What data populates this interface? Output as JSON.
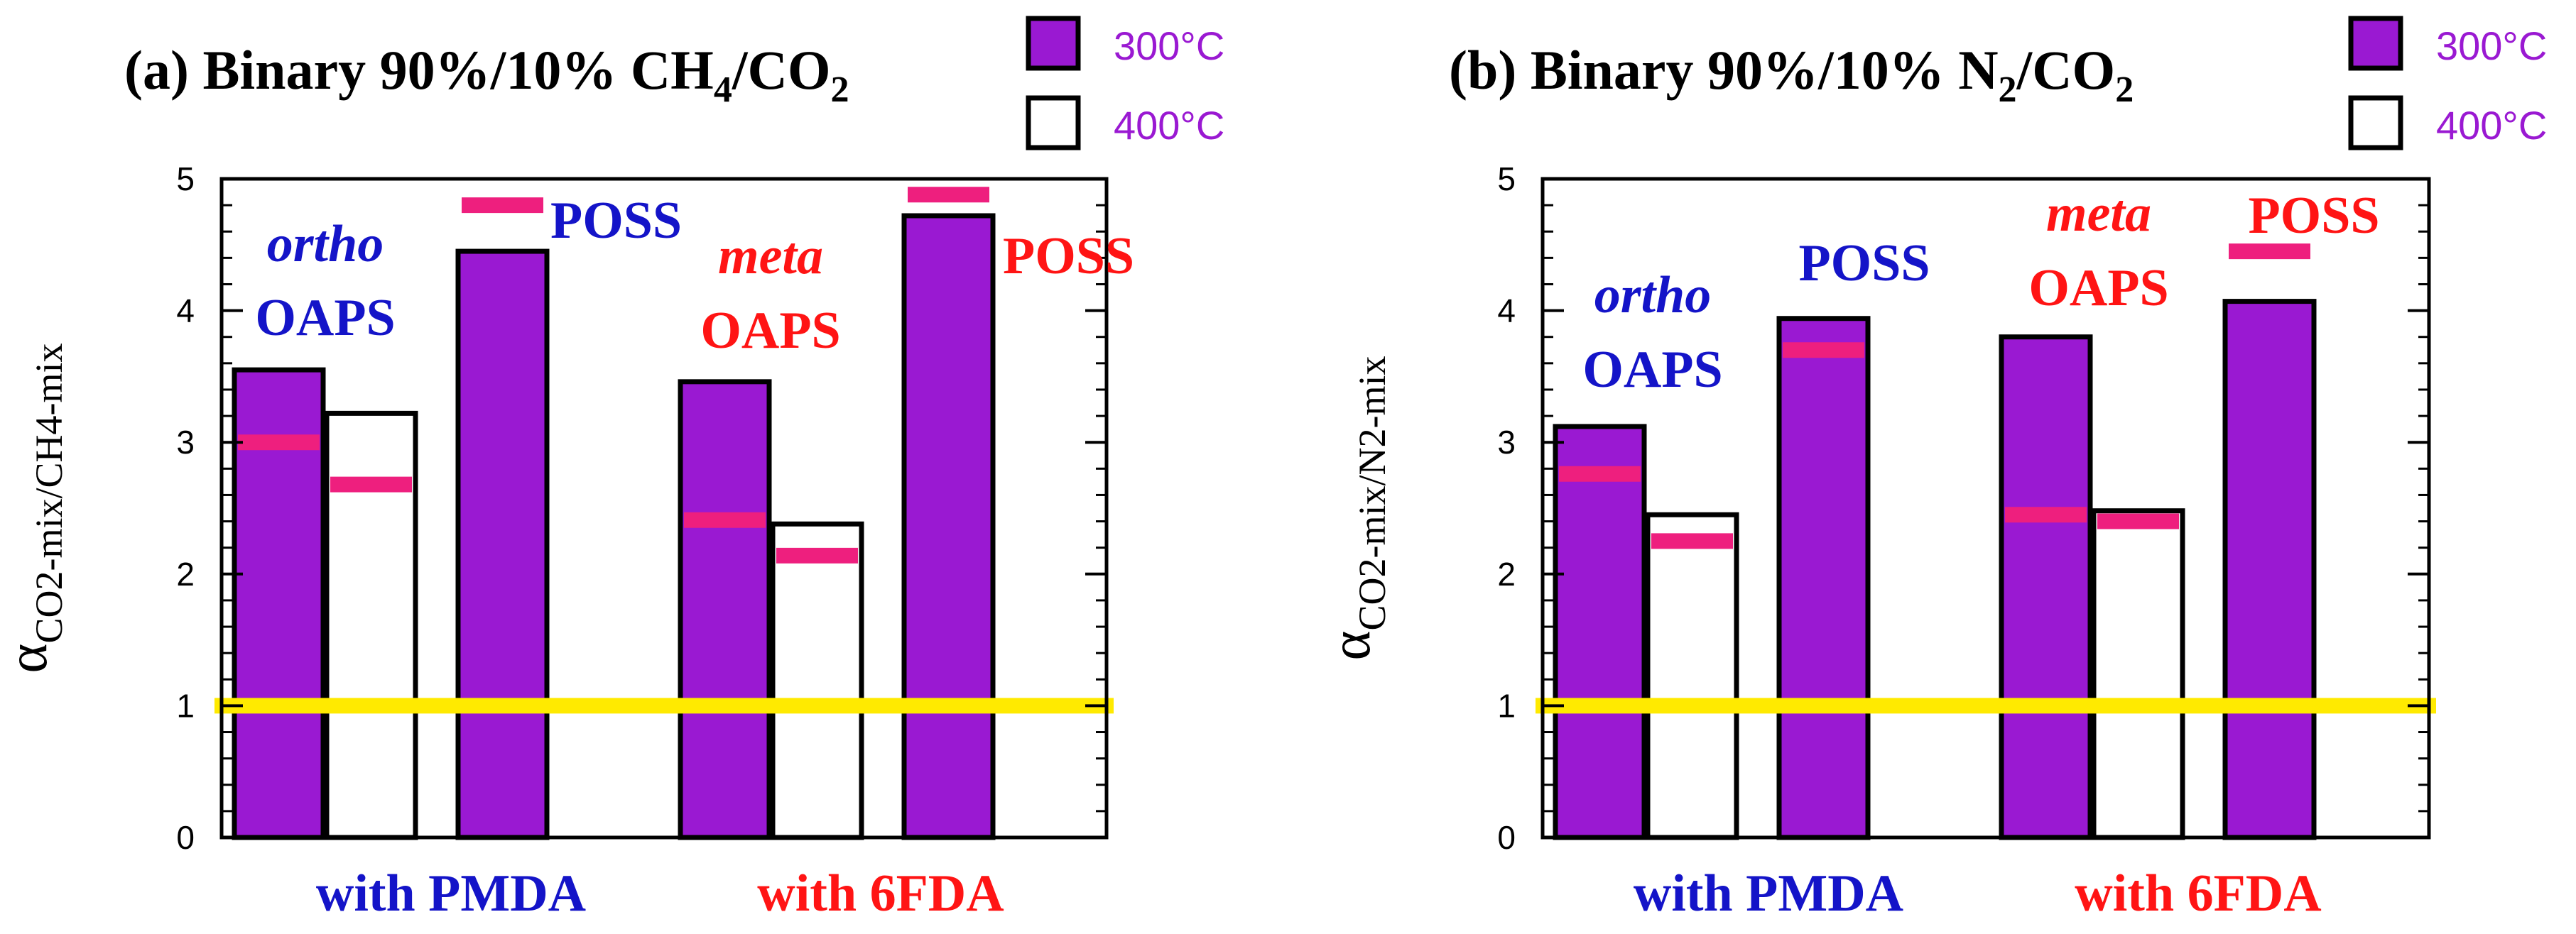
{
  "chart_data": [
    {
      "type": "bar",
      "title_prefix": "(a) Binary 90%/10% CH",
      "title_sub1": "4",
      "title_mid": "/CO",
      "title_sub2": "2",
      "ylabel_main": "α",
      "ylabel_sub": "CO2-mix/CH4-mix",
      "ylim": [
        0,
        5
      ],
      "yticks": [
        "0",
        "1",
        "2",
        "3",
        "4",
        "5"
      ],
      "legend": [
        {
          "label": "300°C",
          "fill": "#9a19d2"
        },
        {
          "label": "400°C",
          "fill": "#ffffff"
        }
      ],
      "groups": [
        "with PMDA",
        "with 6FDA"
      ],
      "group_colors": [
        "#1414c8",
        "#ff1414"
      ],
      "bars": [
        {
          "series": "300°C",
          "value": 3.55,
          "marker": 3.0
        },
        {
          "series": "400°C",
          "value": 3.22,
          "marker": 2.68
        },
        {
          "series": "300°C",
          "value": 4.45,
          "marker": 4.8
        },
        {
          "series": "300°C",
          "value": 3.46,
          "marker": 2.41
        },
        {
          "series": "400°C",
          "value": 2.38,
          "marker": 2.14
        },
        {
          "series": "300°C",
          "value": 4.72,
          "marker": 4.88
        }
      ],
      "reference_line": 1.0,
      "labels": [
        {
          "italic": "ortho",
          "text": "OAPS",
          "color": "#1414c8"
        },
        {
          "italic": "",
          "text": "POSS",
          "color": "#1414c8"
        },
        {
          "italic": "meta",
          "text": "OAPS",
          "color": "#ff1414"
        },
        {
          "italic": "",
          "text": "POSS",
          "color": "#ff1414"
        }
      ]
    },
    {
      "type": "bar",
      "title_prefix": "(b) Binary 90%/10% N",
      "title_sub1": "2",
      "title_mid": "/CO",
      "title_sub2": "2",
      "ylabel_main": "α",
      "ylabel_sub": "CO2-mix/N2-mix",
      "ylim": [
        0,
        5
      ],
      "yticks": [
        "0",
        "1",
        "2",
        "3",
        "4",
        "5"
      ],
      "legend": [
        {
          "label": "300°C",
          "fill": "#9a19d2"
        },
        {
          "label": "400°C",
          "fill": "#ffffff"
        }
      ],
      "groups": [
        "with PMDA",
        "with 6FDA"
      ],
      "group_colors": [
        "#1414c8",
        "#ff1414"
      ],
      "bars": [
        {
          "series": "300°C",
          "value": 3.12,
          "marker": 2.76
        },
        {
          "series": "400°C",
          "value": 2.45,
          "marker": 2.25
        },
        {
          "series": "300°C",
          "value": 3.94,
          "marker": 3.7
        },
        {
          "series": "300°C",
          "value": 3.8,
          "marker": 2.45
        },
        {
          "series": "400°C",
          "value": 2.48,
          "marker": 2.4
        },
        {
          "series": "300°C",
          "value": 4.07,
          "marker": 4.45
        }
      ],
      "reference_line": 1.0,
      "labels": [
        {
          "italic": "ortho",
          "text": "OAPS",
          "color": "#1414c8"
        },
        {
          "italic": "",
          "text": "POSS",
          "color": "#1414c8"
        },
        {
          "italic": "meta",
          "text": "OAPS",
          "color": "#ff1414"
        },
        {
          "italic": "",
          "text": "POSS",
          "color": "#ff1414"
        }
      ]
    }
  ],
  "colors": {
    "bar300": "#9a19d2",
    "bar400": "#ffffff",
    "marker": "#ee1f7e",
    "reference": "#ffea00",
    "legend_text": "#9a19d2"
  }
}
